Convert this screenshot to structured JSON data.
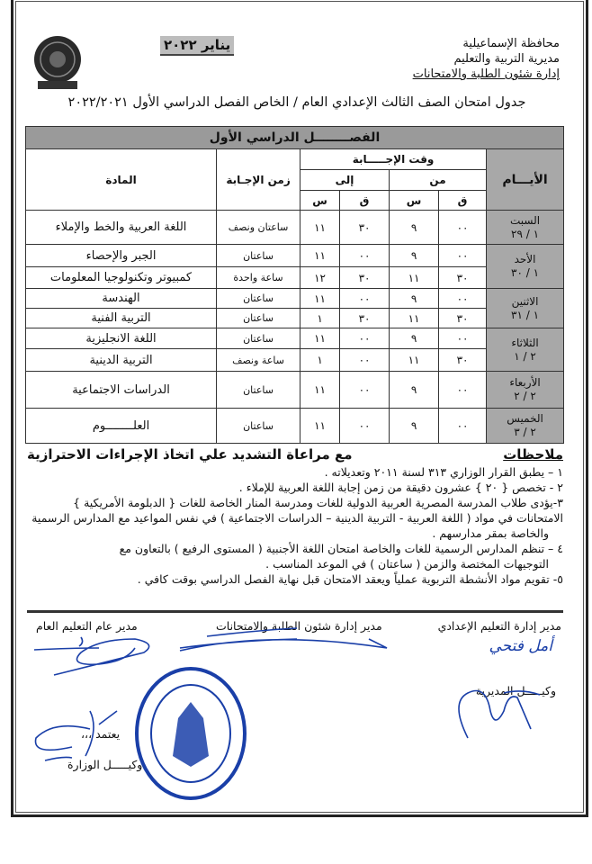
{
  "header": {
    "governorate": "محافظة الإسماعيلية",
    "directorate": "مديرية التربية والتعليم",
    "department": "إدارة شئون الطلبة والامتحانات",
    "date": "يناير ٢٠٢٢",
    "title": "جدول امتحان الصف الثالث الإعدادي العام / الخاص الفصل الدراسي الأول ٢٠٢٢/٢٠٢١"
  },
  "table": {
    "term_header": "الفصــــــــل الدراسي الأول",
    "headers": {
      "days": "الأيـــام",
      "answer_time": "وقت الإجـــــابة",
      "from": "من",
      "to": "إلى",
      "minute": "ق",
      "hour": "س",
      "duration": "زمن الإجـابة",
      "subject": "المادة"
    },
    "days": [
      {
        "name": "السبت",
        "date": "١ / ٢٩",
        "rows": [
          {
            "from_m": "٠٠",
            "from_h": "٩",
            "to_m": "٣٠",
            "to_h": "١١",
            "duration": "ساعتان ونصف",
            "subject": "اللغة العربية والخط والإملاء"
          }
        ]
      },
      {
        "name": "الأحد",
        "date": "١ / ٣٠",
        "rows": [
          {
            "from_m": "٠٠",
            "from_h": "٩",
            "to_m": "٠٠",
            "to_h": "١١",
            "duration": "ساعتان",
            "subject": "الجبر والإحصاء"
          },
          {
            "from_m": "٣٠",
            "from_h": "١١",
            "to_m": "٣٠",
            "to_h": "١٢",
            "duration": "ساعة واحدة",
            "subject": "كمبيوتر وتكنولوجيا المعلومات"
          }
        ]
      },
      {
        "name": "الاثنين",
        "date": "١ / ٣١",
        "rows": [
          {
            "from_m": "٠٠",
            "from_h": "٩",
            "to_m": "٠٠",
            "to_h": "١١",
            "duration": "ساعتان",
            "subject": "الهندسة"
          },
          {
            "from_m": "٣٠",
            "from_h": "١١",
            "to_m": "٣٠",
            "to_h": "١",
            "duration": "ساعتان",
            "subject": "التربية الفنية"
          }
        ]
      },
      {
        "name": "الثلاثاء",
        "date": "٢ / ١",
        "rows": [
          {
            "from_m": "٠٠",
            "from_h": "٩",
            "to_m": "٠٠",
            "to_h": "١١",
            "duration": "ساعتان",
            "subject": "اللغة الانجليزية"
          },
          {
            "from_m": "٣٠",
            "from_h": "١١",
            "to_m": "٠٠",
            "to_h": "١",
            "duration": "ساعة ونصف",
            "subject": "التربية الدينية"
          }
        ]
      },
      {
        "name": "الأربعاء",
        "date": "٢ / ٢",
        "rows": [
          {
            "from_m": "٠٠",
            "from_h": "٩",
            "to_m": "٠٠",
            "to_h": "١١",
            "duration": "ساعتان",
            "subject": "الدراسات الاجتماعية"
          }
        ]
      },
      {
        "name": "الخميس",
        "date": "٢ / ٣",
        "rows": [
          {
            "from_m": "٠٠",
            "from_h": "٩",
            "to_m": "٠٠",
            "to_h": "١١",
            "duration": "ساعتان",
            "subject": "العلــــــــوم"
          }
        ]
      }
    ]
  },
  "notes": {
    "heading": "ملاحظات",
    "emphasis": "مع مراعاة التشديد علي اتخاذ الإجراءات الاحترازية",
    "lines": [
      "١ – يطبق القرار الوزاري ٣١٣ لسنة ٢٠١١ وتعديلاته .",
      "٢ - تخصص { ٢٠ } عشرون دقيقة من زمن إجابة اللغة العربية للإملاء .",
      "٣-يؤدى طلاب المدرسة المصرية العربية الدولية للغات ومدرسة المنار الخاصة للغات { الدبلومة الأمريكية }",
      "الامتحانات في مواد ( اللغة العربية - التربية الدينية – الدراسات الاجتماعية ) في نفس المواعيد مع المدارس الرسمية",
      "والخاصة بمقر مدارسهم .",
      "٤ – تنظم المدارس الرسمية للغات والخاصة امتحان اللغة الأجنبية ( المستوى الرفيع ) بالتعاون مع",
      "التوجيهات المختصة والزمن ( ساعتان ) في الموعد المناسب .",
      "٥- تقويم مواد الأنشطة التربوية عملياً ويعقد الامتحان قبل نهاية الفصل الدراسي بوقت كافي ."
    ]
  },
  "signatures": {
    "prep_director": "مدير إدارة التعليم الإعدادي",
    "students_director": "مدير إدارة شئون الطلبة والامتحانات",
    "general_director": "مدير عام التعليم العام",
    "directorate_deputy": "وكيـــــل المديرية",
    "approved": "يعتمد ،،،",
    "ministry_deputy": "وكيـــــل الوزارة",
    "handwritten_name": "أمل فتحي",
    "seal_text": "الديوان العام"
  },
  "colors": {
    "ink_blue": "#1a3fa8",
    "header_gray": "#a8a8a8"
  }
}
